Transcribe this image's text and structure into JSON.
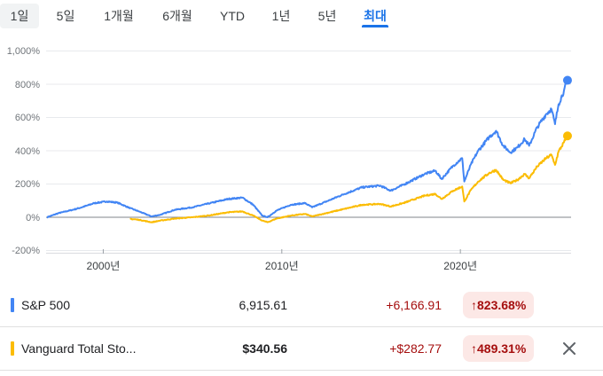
{
  "tabs": [
    "1일",
    "5일",
    "1개월",
    "6개월",
    "YTD",
    "1년",
    "5년",
    "최대"
  ],
  "active_tab": "최대",
  "chart_data": {
    "type": "line",
    "y_ticks": [
      "1,000%",
      "800%",
      "600%",
      "400%",
      "200%",
      "0%",
      "-200%"
    ],
    "ylim": [
      -200,
      1000
    ],
    "x_ticks": [
      "2000년",
      "2010년",
      "2020년"
    ],
    "x_tick_years": [
      2000,
      2010,
      2020
    ],
    "xlim": [
      1996.8,
      2026.2
    ],
    "baseline": 0,
    "series": [
      {
        "name": "S&P 500",
        "color": "#4285f4",
        "points": [
          [
            1996.85,
            0
          ],
          [
            1997.5,
            25
          ],
          [
            1998.3,
            45
          ],
          [
            1998.8,
            60
          ],
          [
            1999.5,
            85
          ],
          [
            2000.2,
            95
          ],
          [
            2000.8,
            88
          ],
          [
            2001.5,
            55
          ],
          [
            2002.0,
            35
          ],
          [
            2002.7,
            5
          ],
          [
            2003.2,
            15
          ],
          [
            2004.0,
            45
          ],
          [
            2005.0,
            60
          ],
          [
            2006.0,
            85
          ],
          [
            2007.0,
            110
          ],
          [
            2007.8,
            118
          ],
          [
            2008.4,
            75
          ],
          [
            2008.9,
            10
          ],
          [
            2009.2,
            0
          ],
          [
            2009.7,
            40
          ],
          [
            2010.5,
            75
          ],
          [
            2011.3,
            85
          ],
          [
            2011.7,
            60
          ],
          [
            2012.5,
            95
          ],
          [
            2013.5,
            140
          ],
          [
            2014.5,
            180
          ],
          [
            2015.5,
            190
          ],
          [
            2016.1,
            160
          ],
          [
            2016.8,
            195
          ],
          [
            2018.0,
            260
          ],
          [
            2018.6,
            280
          ],
          [
            2018.95,
            230
          ],
          [
            2019.6,
            310
          ],
          [
            2020.1,
            355
          ],
          [
            2020.22,
            215
          ],
          [
            2020.6,
            320
          ],
          [
            2021.0,
            400
          ],
          [
            2021.6,
            480
          ],
          [
            2022.0,
            520
          ],
          [
            2022.4,
            430
          ],
          [
            2022.8,
            390
          ],
          [
            2023.2,
            420
          ],
          [
            2023.6,
            470
          ],
          [
            2023.85,
            430
          ],
          [
            2024.3,
            540
          ],
          [
            2024.8,
            620
          ],
          [
            2025.1,
            650
          ],
          [
            2025.3,
            560
          ],
          [
            2025.5,
            680
          ],
          [
            2025.8,
            760
          ],
          [
            2026.0,
            823.68
          ]
        ]
      },
      {
        "name": "Vanguard Total Sto...",
        "color": "#fbbc04",
        "points": [
          [
            2001.5,
            -10
          ],
          [
            2002.0,
            -15
          ],
          [
            2002.7,
            -30
          ],
          [
            2003.2,
            -20
          ],
          [
            2004.0,
            -8
          ],
          [
            2005.0,
            0
          ],
          [
            2006.0,
            12
          ],
          [
            2007.0,
            30
          ],
          [
            2007.8,
            35
          ],
          [
            2008.4,
            10
          ],
          [
            2008.9,
            -20
          ],
          [
            2009.2,
            -30
          ],
          [
            2009.7,
            -8
          ],
          [
            2010.5,
            10
          ],
          [
            2011.3,
            20
          ],
          [
            2011.7,
            5
          ],
          [
            2012.5,
            25
          ],
          [
            2013.5,
            50
          ],
          [
            2014.5,
            75
          ],
          [
            2015.5,
            80
          ],
          [
            2016.1,
            65
          ],
          [
            2016.8,
            85
          ],
          [
            2018.0,
            130
          ],
          [
            2018.6,
            140
          ],
          [
            2018.95,
            110
          ],
          [
            2019.6,
            160
          ],
          [
            2020.1,
            185
          ],
          [
            2020.22,
            95
          ],
          [
            2020.6,
            165
          ],
          [
            2021.0,
            215
          ],
          [
            2021.6,
            265
          ],
          [
            2022.0,
            285
          ],
          [
            2022.4,
            225
          ],
          [
            2022.8,
            205
          ],
          [
            2023.2,
            225
          ],
          [
            2023.6,
            260
          ],
          [
            2023.85,
            235
          ],
          [
            2024.3,
            305
          ],
          [
            2024.8,
            355
          ],
          [
            2025.1,
            375
          ],
          [
            2025.3,
            315
          ],
          [
            2025.5,
            395
          ],
          [
            2025.8,
            450
          ],
          [
            2026.0,
            489.31
          ]
        ]
      }
    ]
  },
  "rows": [
    {
      "name": "S&P 500",
      "price": "6,915.61",
      "change": "+6,166.91",
      "percent": "823.68%",
      "color": "#4285f4"
    },
    {
      "name": "Vanguard Total Sto...",
      "price": "$340.56",
      "change": "+$282.77",
      "percent": "489.31%",
      "color": "#fbbc04"
    }
  ],
  "arrow_glyph": "↑"
}
